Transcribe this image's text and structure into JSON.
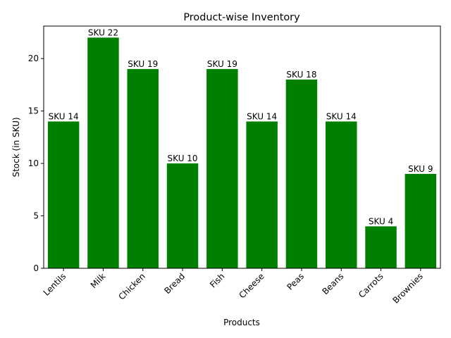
{
  "chart_data": {
    "type": "bar",
    "title": "Product-wise Inventory",
    "xlabel": "Products",
    "ylabel": "Stock (in SKU)",
    "categories": [
      "Lentils",
      "Milk",
      "Chicken",
      "Bread",
      "Fish",
      "Cheese",
      "Peas",
      "Beans",
      "Carrots",
      "Brownies"
    ],
    "values": [
      14,
      22,
      19,
      10,
      19,
      14,
      18,
      14,
      4,
      9
    ],
    "data_labels": [
      "SKU 14",
      "SKU 22",
      "SKU 19",
      "SKU 10",
      "SKU 19",
      "SKU 14",
      "SKU 18",
      "SKU 14",
      "SKU 4",
      "SKU 9"
    ],
    "ylim": [
      0,
      23.1
    ],
    "yticks": [
      0,
      5,
      10,
      15,
      20
    ],
    "grid": false,
    "legend": "none",
    "bar_color": "#008000"
  }
}
